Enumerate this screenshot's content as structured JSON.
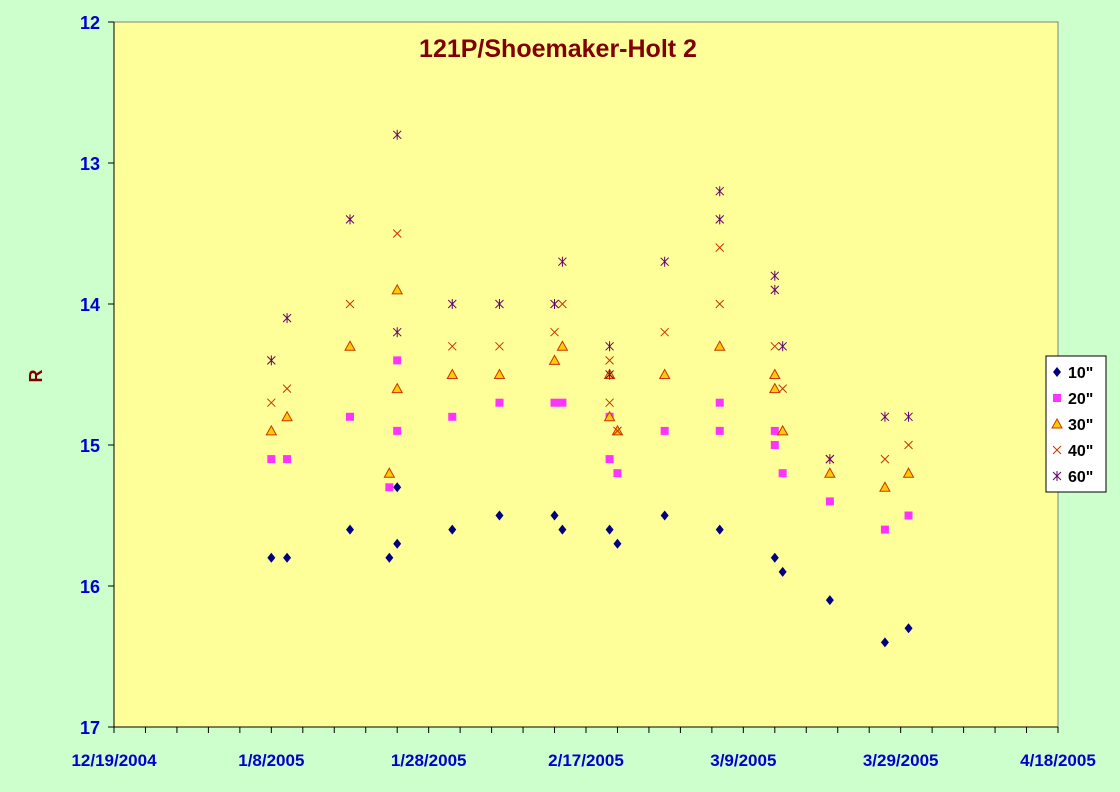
{
  "chart_data": {
    "type": "scatter",
    "title": "121P/Shoemaker-Holt 2",
    "xlabel": "",
    "ylabel": "R",
    "x_axis": {
      "type": "date",
      "min": "2004-12-19",
      "max": "2005-04-18",
      "tick_labels": [
        "12/19/2004",
        "1/8/2005",
        "1/28/2005",
        "2/17/2005",
        "3/9/2005",
        "3/29/2005",
        "4/18/2005"
      ]
    },
    "y_axis": {
      "min": 12,
      "max": 17,
      "reversed": true,
      "tick_labels": [
        "12",
        "13",
        "14",
        "15",
        "16",
        "17"
      ]
    },
    "grid": false,
    "legend_position": "right",
    "colors": {
      "plot_background": "#ffff99",
      "page_background": "#ccffcc",
      "title": "#800000",
      "ylabel": "#800000",
      "tick_labels": "#0000cc"
    },
    "series": [
      {
        "name": "10\"",
        "marker": "diamond",
        "color": "#000080",
        "points": [
          [
            "2005-01-08",
            15.8
          ],
          [
            "2005-01-10",
            15.8
          ],
          [
            "2005-01-18",
            15.6
          ],
          [
            "2005-01-23",
            15.8
          ],
          [
            "2005-01-24",
            15.3
          ],
          [
            "2005-01-24",
            15.7
          ],
          [
            "2005-01-31",
            15.6
          ],
          [
            "2005-02-06",
            15.5
          ],
          [
            "2005-02-13",
            15.5
          ],
          [
            "2005-02-14",
            15.6
          ],
          [
            "2005-02-20",
            15.6
          ],
          [
            "2005-02-21",
            15.7
          ],
          [
            "2005-02-27",
            15.5
          ],
          [
            "2005-03-06",
            15.6
          ],
          [
            "2005-03-13",
            15.8
          ],
          [
            "2005-03-14",
            15.9
          ],
          [
            "2005-03-20",
            16.1
          ],
          [
            "2005-03-27",
            16.4
          ],
          [
            "2005-03-30",
            16.3
          ]
        ]
      },
      {
        "name": "20\"",
        "marker": "square",
        "color": "#ff33ff",
        "points": [
          [
            "2005-01-08",
            15.1
          ],
          [
            "2005-01-10",
            15.1
          ],
          [
            "2005-01-18",
            14.8
          ],
          [
            "2005-01-23",
            15.3
          ],
          [
            "2005-01-24",
            14.4
          ],
          [
            "2005-01-24",
            14.9
          ],
          [
            "2005-01-31",
            14.8
          ],
          [
            "2005-02-06",
            14.7
          ],
          [
            "2005-02-13",
            14.7
          ],
          [
            "2005-02-14",
            14.7
          ],
          [
            "2005-02-20",
            15.1
          ],
          [
            "2005-02-20",
            14.8
          ],
          [
            "2005-02-21",
            15.2
          ],
          [
            "2005-02-27",
            14.9
          ],
          [
            "2005-03-06",
            14.9
          ],
          [
            "2005-03-06",
            14.7
          ],
          [
            "2005-03-13",
            15.0
          ],
          [
            "2005-03-13",
            14.9
          ],
          [
            "2005-03-14",
            15.2
          ],
          [
            "2005-03-20",
            15.4
          ],
          [
            "2005-03-27",
            15.6
          ],
          [
            "2005-03-30",
            15.5
          ]
        ]
      },
      {
        "name": "30\"",
        "marker": "triangle",
        "color": "#ffcc00",
        "points": [
          [
            "2005-01-08",
            14.9
          ],
          [
            "2005-01-10",
            14.8
          ],
          [
            "2005-01-18",
            14.3
          ],
          [
            "2005-01-23",
            15.2
          ],
          [
            "2005-01-24",
            13.9
          ],
          [
            "2005-01-24",
            14.6
          ],
          [
            "2005-01-31",
            14.5
          ],
          [
            "2005-02-06",
            14.5
          ],
          [
            "2005-02-13",
            14.4
          ],
          [
            "2005-02-14",
            14.3
          ],
          [
            "2005-02-20",
            14.5
          ],
          [
            "2005-02-20",
            14.8
          ],
          [
            "2005-02-21",
            14.9
          ],
          [
            "2005-02-27",
            14.5
          ],
          [
            "2005-03-06",
            14.3
          ],
          [
            "2005-03-13",
            14.5
          ],
          [
            "2005-03-13",
            14.6
          ],
          [
            "2005-03-14",
            14.9
          ],
          [
            "2005-03-20",
            15.2
          ],
          [
            "2005-03-27",
            15.3
          ],
          [
            "2005-03-30",
            15.2
          ]
        ]
      },
      {
        "name": "40\"",
        "marker": "x",
        "color": "#cc3300",
        "points": [
          [
            "2005-01-08",
            14.7
          ],
          [
            "2005-01-10",
            14.6
          ],
          [
            "2005-01-18",
            14.0
          ],
          [
            "2005-01-24",
            13.5
          ],
          [
            "2005-01-31",
            14.3
          ],
          [
            "2005-02-06",
            14.3
          ],
          [
            "2005-02-13",
            14.2
          ],
          [
            "2005-02-14",
            14.0
          ],
          [
            "2005-02-20",
            14.4
          ],
          [
            "2005-02-20",
            14.7
          ],
          [
            "2005-02-21",
            14.9
          ],
          [
            "2005-02-27",
            14.2
          ],
          [
            "2005-03-06",
            13.6
          ],
          [
            "2005-03-06",
            14.0
          ],
          [
            "2005-03-13",
            14.3
          ],
          [
            "2005-03-14",
            14.6
          ],
          [
            "2005-03-20",
            15.1
          ],
          [
            "2005-03-27",
            15.1
          ],
          [
            "2005-03-30",
            15.0
          ]
        ]
      },
      {
        "name": "60\"",
        "marker": "star",
        "color": "#660066",
        "points": [
          [
            "2005-01-08",
            14.4
          ],
          [
            "2005-01-10",
            14.1
          ],
          [
            "2005-01-18",
            13.4
          ],
          [
            "2005-01-24",
            12.8
          ],
          [
            "2005-01-24",
            14.2
          ],
          [
            "2005-01-31",
            14.0
          ],
          [
            "2005-02-06",
            14.0
          ],
          [
            "2005-02-13",
            14.0
          ],
          [
            "2005-02-14",
            13.7
          ],
          [
            "2005-02-20",
            14.3
          ],
          [
            "2005-02-20",
            14.5
          ],
          [
            "2005-02-27",
            13.7
          ],
          [
            "2005-03-06",
            13.2
          ],
          [
            "2005-03-06",
            13.4
          ],
          [
            "2005-03-13",
            13.8
          ],
          [
            "2005-03-13",
            13.9
          ],
          [
            "2005-03-14",
            14.3
          ],
          [
            "2005-03-20",
            15.1
          ],
          [
            "2005-03-27",
            14.8
          ],
          [
            "2005-03-30",
            14.8
          ]
        ]
      }
    ]
  }
}
